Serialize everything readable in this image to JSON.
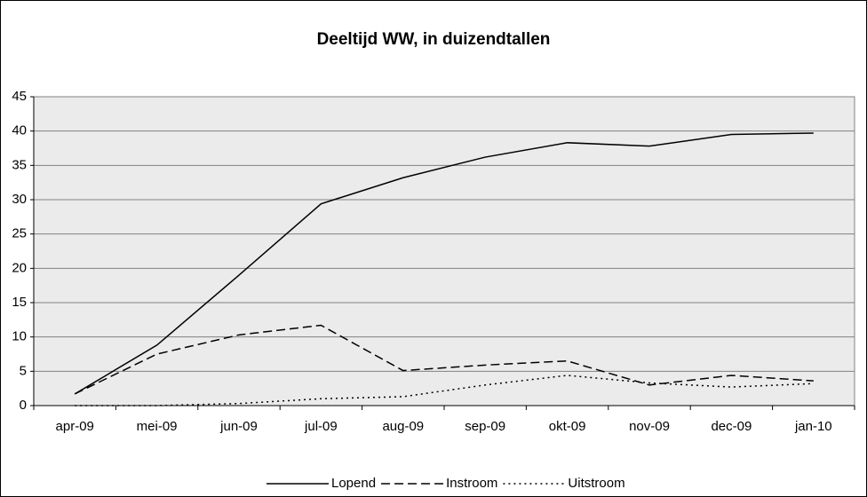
{
  "chart_data": {
    "type": "line",
    "title": "Deeltijd WW, in duizendtallen",
    "categories": [
      "apr-09",
      "mei-09",
      "jun-09",
      "jul-09",
      "aug-09",
      "sep-09",
      "okt-09",
      "nov-09",
      "dec-09",
      "jan-10"
    ],
    "series": [
      {
        "name": "Lopend",
        "color": "#000000",
        "style": "solid",
        "values": [
          1.7,
          8.8,
          19,
          29.4,
          33.2,
          36.2,
          38.3,
          37.8,
          39.5,
          39.7
        ]
      },
      {
        "name": "Instroom",
        "color": "#000000",
        "style": "dashed",
        "values": [
          1.7,
          7.5,
          10.3,
          11.7,
          5.1,
          5.9,
          6.5,
          3.0,
          4.4,
          3.6
        ]
      },
      {
        "name": "Uitstroom",
        "color": "#000000",
        "style": "dotted",
        "values": [
          0,
          0,
          0.3,
          1.0,
          1.3,
          3.0,
          4.4,
          3.3,
          2.7,
          3.2
        ]
      }
    ],
    "ylim": [
      0,
      45
    ],
    "yticks": [
      0,
      5,
      10,
      15,
      20,
      25,
      30,
      35,
      40,
      45
    ],
    "grid": true,
    "legend": "bottom"
  }
}
